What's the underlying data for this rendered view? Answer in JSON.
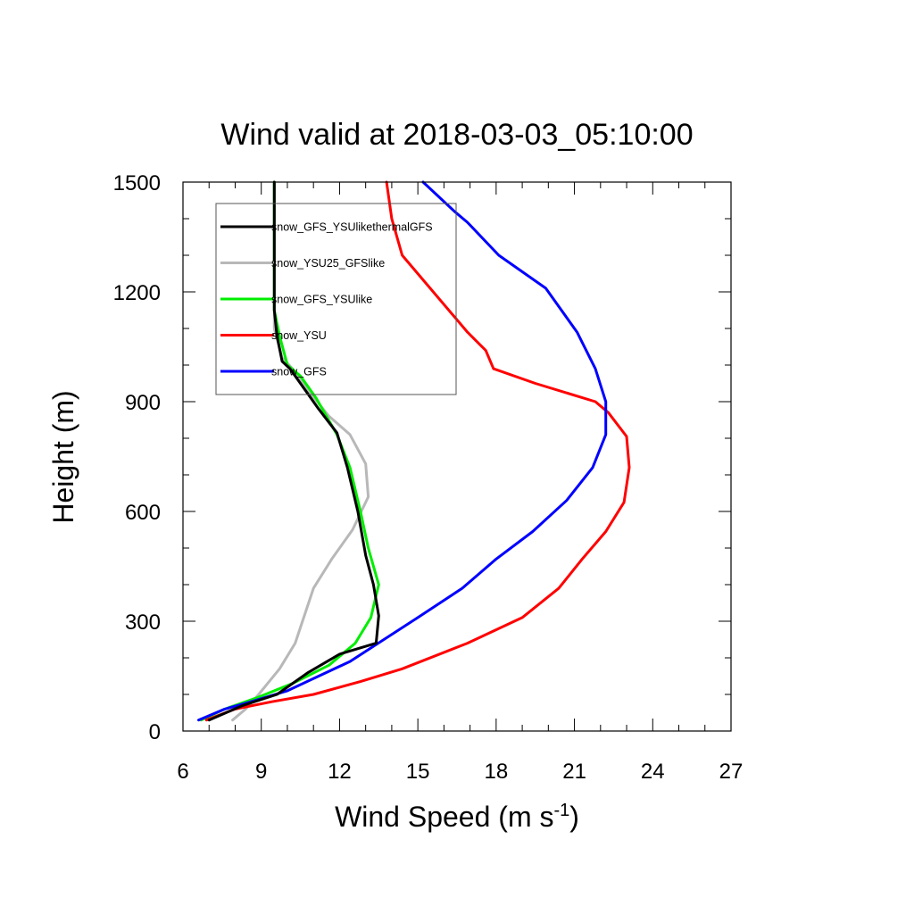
{
  "chart_data": {
    "type": "line",
    "title": "Wind valid at 2018-03-03_05:10:00",
    "xlabel": "Wind Speed (m s",
    "xlabel_sup": "-1",
    "xlabel_close": ")",
    "ylabel": "Height (m)",
    "xlim": [
      6,
      27
    ],
    "ylim": [
      0,
      1500
    ],
    "xticks": [
      6,
      9,
      12,
      15,
      18,
      21,
      24,
      27
    ],
    "yticks": [
      0,
      300,
      600,
      900,
      1200,
      1500
    ],
    "xtick_labels": [
      "6",
      "9",
      "12",
      "15",
      "18",
      "21",
      "24",
      "27"
    ],
    "ytick_labels": [
      "0",
      "300",
      "600",
      "900",
      "1200",
      "1500"
    ],
    "legend_position": "top-left",
    "series": [
      {
        "name": "snow_GFS_YSUlikethermalGFS",
        "color": "#000000",
        "points": [
          [
            7.0,
            30
          ],
          [
            8.3,
            70
          ],
          [
            9.6,
            100
          ],
          [
            10.8,
            160
          ],
          [
            12.0,
            210
          ],
          [
            13.4,
            240
          ],
          [
            13.5,
            315
          ],
          [
            13.3,
            400
          ],
          [
            13.0,
            480
          ],
          [
            12.7,
            600
          ],
          [
            12.3,
            720
          ],
          [
            11.9,
            815
          ],
          [
            11.2,
            880
          ],
          [
            10.6,
            940
          ],
          [
            10.1,
            990
          ],
          [
            9.8,
            1010
          ],
          [
            9.6,
            1080
          ],
          [
            9.5,
            1150
          ],
          [
            9.5,
            1300
          ],
          [
            9.5,
            1500
          ]
        ]
      },
      {
        "name": "snow_YSU25_GFSlike",
        "color": "#b8b8b8",
        "points": [
          [
            7.9,
            30
          ],
          [
            8.4,
            60
          ],
          [
            8.9,
            100
          ],
          [
            9.7,
            170
          ],
          [
            10.3,
            240
          ],
          [
            11.0,
            390
          ],
          [
            11.7,
            470
          ],
          [
            12.5,
            550
          ],
          [
            13.1,
            640
          ],
          [
            13.0,
            730
          ],
          [
            12.4,
            810
          ],
          [
            11.6,
            860
          ],
          [
            10.8,
            930
          ],
          [
            10.2,
            990
          ],
          [
            9.8,
            1020
          ],
          [
            9.5,
            1100
          ],
          [
            9.5,
            1300
          ],
          [
            9.5,
            1500
          ]
        ]
      },
      {
        "name": "snow_GFS_YSUlike",
        "color": "#00ee00",
        "points": [
          [
            6.7,
            30
          ],
          [
            7.6,
            60
          ],
          [
            8.8,
            90
          ],
          [
            10.2,
            130
          ],
          [
            11.6,
            180
          ],
          [
            12.6,
            240
          ],
          [
            13.2,
            310
          ],
          [
            13.5,
            400
          ],
          [
            13.1,
            500
          ],
          [
            12.8,
            600
          ],
          [
            12.4,
            720
          ],
          [
            11.9,
            810
          ],
          [
            11.1,
            910
          ],
          [
            10.5,
            970
          ],
          [
            10.0,
            1000
          ],
          [
            9.7,
            1080
          ],
          [
            9.5,
            1150
          ],
          [
            9.5,
            1300
          ],
          [
            9.5,
            1500
          ]
        ]
      },
      {
        "name": "snow_YSU",
        "color": "#ff0000",
        "points": [
          [
            6.9,
            30
          ],
          [
            8.0,
            60
          ],
          [
            9.4,
            80
          ],
          [
            11.0,
            100
          ],
          [
            12.8,
            135
          ],
          [
            14.4,
            170
          ],
          [
            16.9,
            240
          ],
          [
            19.0,
            310
          ],
          [
            20.4,
            390
          ],
          [
            21.3,
            470
          ],
          [
            22.2,
            545
          ],
          [
            22.9,
            625
          ],
          [
            23.1,
            720
          ],
          [
            23.0,
            805
          ],
          [
            22.3,
            870
          ],
          [
            21.8,
            900
          ],
          [
            19.5,
            950
          ],
          [
            17.9,
            990
          ],
          [
            17.6,
            1040
          ],
          [
            16.9,
            1090
          ],
          [
            14.4,
            1300
          ],
          [
            14.0,
            1400
          ],
          [
            13.8,
            1500
          ]
        ]
      },
      {
        "name": "snow_GFS",
        "color": "#0000ff",
        "points": [
          [
            6.6,
            30
          ],
          [
            7.6,
            60
          ],
          [
            8.6,
            80
          ],
          [
            10.0,
            110
          ],
          [
            11.2,
            150
          ],
          [
            12.4,
            190
          ],
          [
            13.7,
            250
          ],
          [
            15.0,
            310
          ],
          [
            16.7,
            390
          ],
          [
            18.0,
            470
          ],
          [
            19.4,
            545
          ],
          [
            20.7,
            630
          ],
          [
            21.7,
            720
          ],
          [
            22.2,
            810
          ],
          [
            22.2,
            900
          ],
          [
            21.8,
            990
          ],
          [
            21.1,
            1090
          ],
          [
            19.9,
            1210
          ],
          [
            18.1,
            1300
          ],
          [
            16.9,
            1390
          ],
          [
            16.4,
            1420
          ],
          [
            15.2,
            1500
          ]
        ]
      }
    ]
  }
}
